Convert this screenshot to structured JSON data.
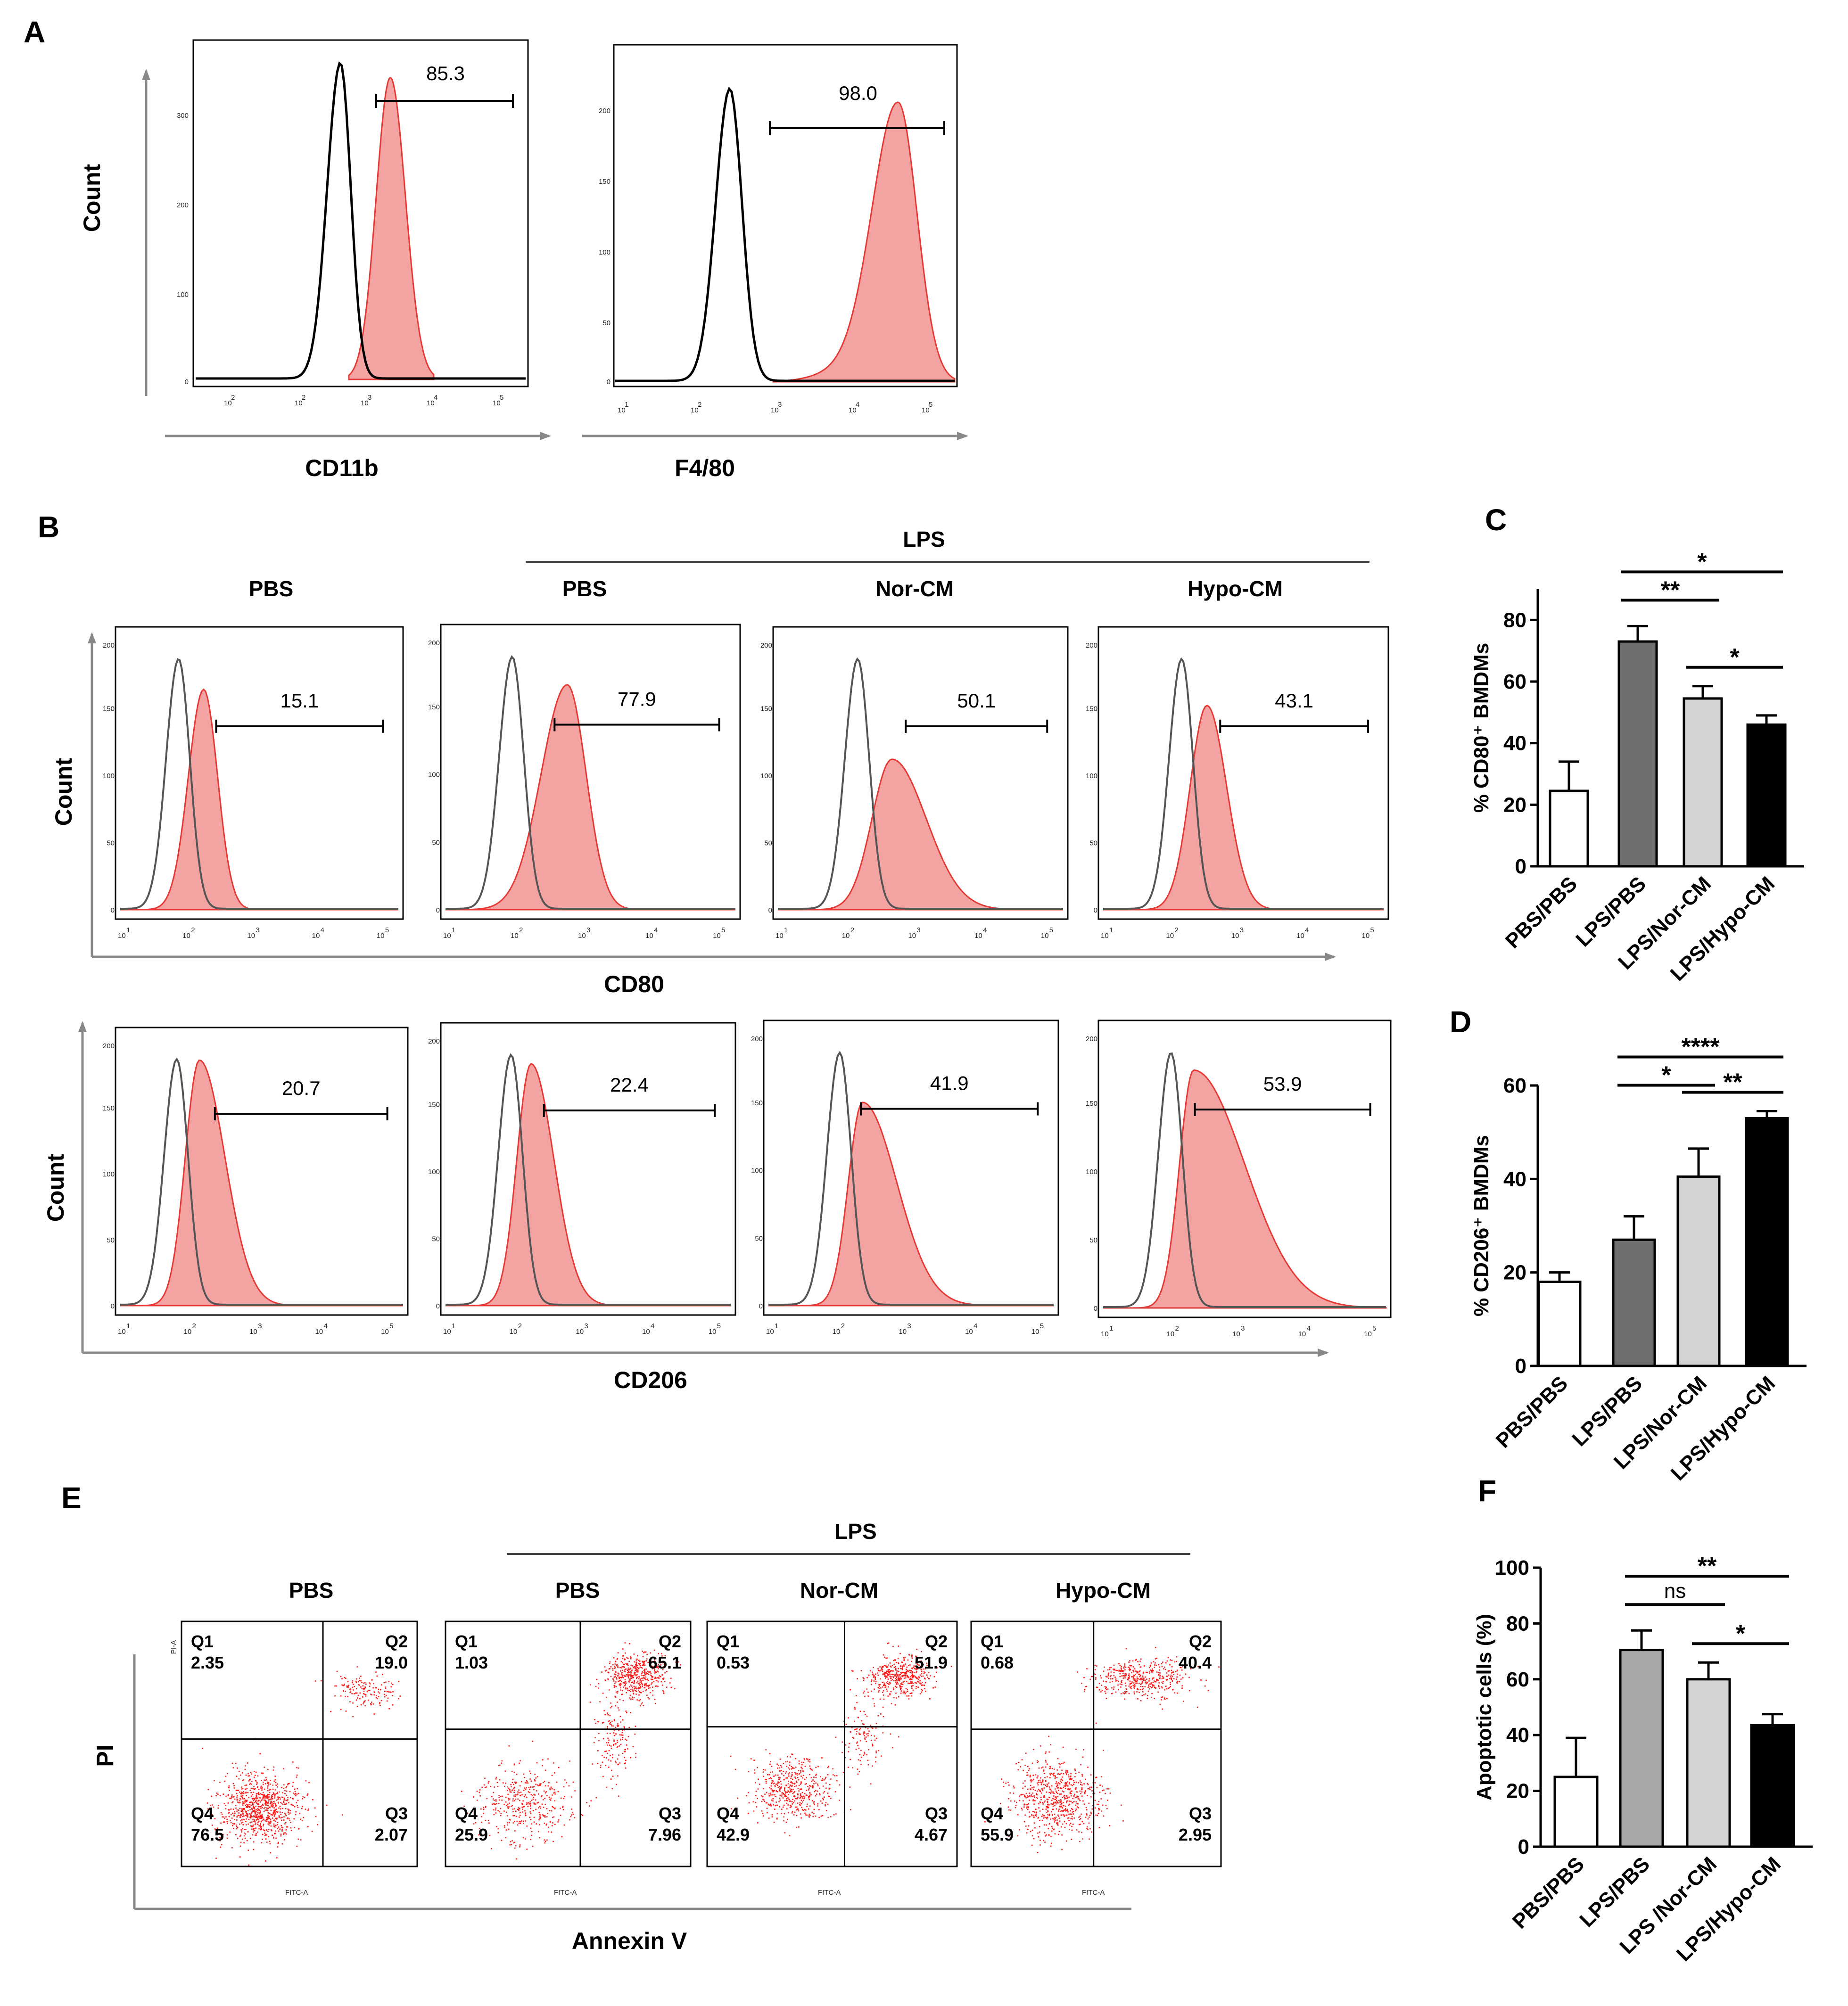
{
  "panels": {
    "A": {
      "letter": "A",
      "ylabel": "Count",
      "colors": {
        "ctrl": "#000000",
        "fill": "#f4a3a3",
        "edge": "#e53935"
      },
      "plots": [
        {
          "xlabel": "CD11b",
          "gate_value": "85.3",
          "xticks": [
            "10",
            "2",
            "10",
            "3",
            "10",
            "4",
            "10",
            "5"
          ],
          "yticks": [
            "300",
            "200",
            "100",
            "0"
          ]
        },
        {
          "xlabel": "F4/80",
          "gate_value": "98.0",
          "xticks": [
            "10",
            "1",
            "10",
            "2",
            "10",
            "3",
            "10",
            "4",
            "10",
            "5"
          ],
          "yticks": [
            "200",
            "150",
            "100",
            "50",
            "0"
          ]
        }
      ]
    },
    "B": {
      "letter": "B",
      "group_label": "LPS",
      "headers": [
        "PBS",
        "PBS",
        "Nor-CM",
        "Hypo-CM"
      ],
      "rows": [
        {
          "marker": "CD80",
          "ylabel": "Count",
          "gate_values": [
            "15.1",
            "77.9",
            "50.1",
            "43.1"
          ],
          "yticks": [
            "200",
            "150",
            "100",
            "50",
            "0"
          ]
        },
        {
          "marker": "CD206",
          "ylabel": "Count",
          "gate_values": [
            "20.7",
            "22.4",
            "41.9",
            "53.9"
          ],
          "yticks": [
            "200",
            "150",
            "100",
            "50",
            "0"
          ]
        }
      ],
      "xticks_sup": [
        "1",
        "2",
        "3",
        "4",
        "5"
      ],
      "xticks_base": "10"
    },
    "E": {
      "letter": "E",
      "group_label": "LPS",
      "headers": [
        "PBS",
        "PBS",
        "Nor-CM",
        "Hypo-CM"
      ],
      "ylabel": "PI",
      "xlabel": "Annexin V",
      "inner_xlabel": "FITC-A",
      "inner_ylabel": "PI-A",
      "quadrant_names": [
        "Q1",
        "Q2",
        "Q3",
        "Q4"
      ],
      "plots": [
        {
          "Q1": "2.35",
          "Q2": "19.0",
          "Q3": "2.07",
          "Q4": "76.5"
        },
        {
          "Q1": "1.03",
          "Q2": "65.1",
          "Q3": "7.96",
          "Q4": "25.9"
        },
        {
          "Q1": "0.53",
          "Q2": "51.9",
          "Q3": "4.67",
          "Q4": "42.9"
        },
        {
          "Q1": "0.68",
          "Q2": "40.4",
          "Q3": "2.95",
          "Q4": "55.9"
        }
      ]
    }
  },
  "chart_data": [
    {
      "panel": "C",
      "type": "bar",
      "categories": [
        "PBS/PBS",
        "LPS/PBS",
        "LPS/Nor-CM",
        "LPS/Hypo-CM"
      ],
      "values": [
        24.5,
        73,
        54.5,
        46
      ],
      "errors": [
        9.5,
        5,
        4,
        3
      ],
      "ylabel": "% CD80⁺ BMDMs",
      "ylim": [
        0,
        90
      ],
      "yticks": [
        0,
        20,
        40,
        60,
        80
      ],
      "bar_colors": [
        "#ffffff",
        "#6e6e6e",
        "#d3d3d3",
        "#000000"
      ],
      "significance": [
        {
          "from": 1,
          "to": 3,
          "label": "*"
        },
        {
          "from": 1,
          "to": 2,
          "label": "**"
        },
        {
          "from": 2,
          "to": 3,
          "label": "*"
        }
      ]
    },
    {
      "panel": "D",
      "type": "bar",
      "categories": [
        "PBS/PBS",
        "LPS/PBS",
        "LPS/Nor-CM",
        "LPS/Hypo-CM"
      ],
      "values": [
        18,
        27,
        40.5,
        53
      ],
      "errors": [
        2,
        5,
        6,
        1.5
      ],
      "ylabel": "% CD206⁺ BMDMs",
      "ylim": [
        0,
        60
      ],
      "yticks": [
        0,
        20,
        40,
        60
      ],
      "bar_colors": [
        "#ffffff",
        "#6e6e6e",
        "#d3d3d3",
        "#000000"
      ],
      "significance": [
        {
          "from": 1,
          "to": 3,
          "label": "****"
        },
        {
          "from": 1,
          "to": 2,
          "label": "*"
        },
        {
          "from": 2,
          "to": 3,
          "label": "**"
        }
      ]
    },
    {
      "panel": "F",
      "type": "bar",
      "categories": [
        "PBS/PBS",
        "LPS/PBS",
        "LPS /Nor-CM",
        "LPS/Hypo-CM"
      ],
      "values": [
        25,
        70.5,
        60,
        43.5
      ],
      "errors": [
        14,
        7,
        6,
        4
      ],
      "ylabel": "Apoptotic cells (%)",
      "ylim": [
        0,
        100
      ],
      "yticks": [
        0,
        20,
        40,
        60,
        80,
        100
      ],
      "bar_colors": [
        "#ffffff",
        "#a8a8a8",
        "#d3d3d3",
        "#000000"
      ],
      "significance": [
        {
          "from": 1,
          "to": 3,
          "label": "**"
        },
        {
          "from": 1,
          "to": 2,
          "label": "ns"
        },
        {
          "from": 2,
          "to": 3,
          "label": "*"
        }
      ]
    }
  ]
}
